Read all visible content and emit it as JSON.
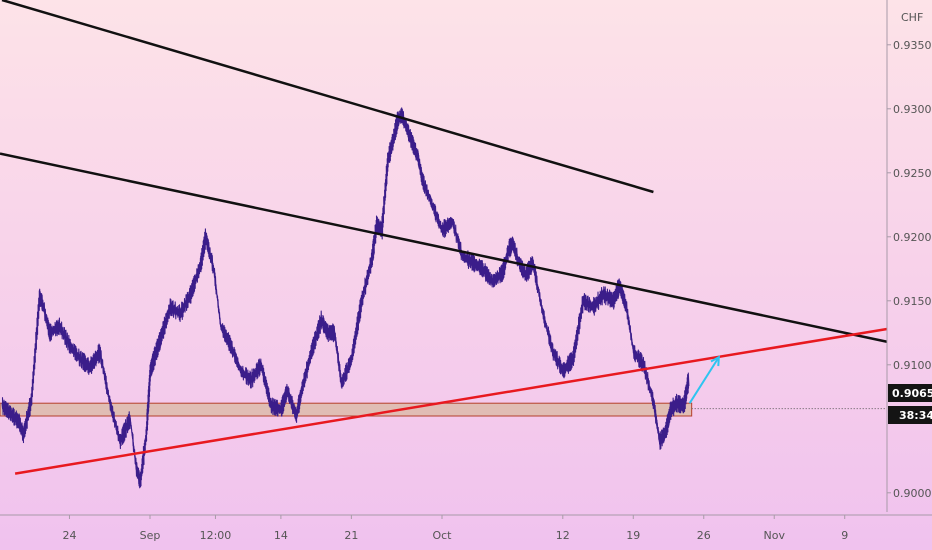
{
  "chart_data": {
    "type": "line",
    "title": "",
    "currency_label": "CHF",
    "y_axis": {
      "ylim": [
        0.8985,
        0.9385
      ],
      "ticks": [
        "0.93500",
        "0.93000",
        "0.92500",
        "0.92000",
        "0.91500",
        "0.91000",
        "0.90000"
      ],
      "tick_values": [
        0.935,
        0.93,
        0.925,
        0.92,
        0.915,
        0.91,
        0.9
      ]
    },
    "x_axis": {
      "tick_labels": [
        "24",
        "Sep",
        "12:00",
        "14",
        "21",
        "Oct",
        "12",
        "19",
        "26",
        "Nov",
        "9"
      ],
      "tick_days": [
        24,
        32,
        38.5,
        45,
        52,
        61,
        73,
        80,
        87,
        94,
        101
      ],
      "xlim": [
        17.1,
        105.2
      ]
    },
    "current_price": {
      "label": "0.90658",
      "value": 0.90658,
      "countdown": "38:34"
    },
    "price_series": {
      "name": "",
      "color": "#3b1d8a",
      "x": [
        17.3,
        18.0,
        19.0,
        19.4,
        20.2,
        21.0,
        21.3,
        22.0,
        23.0,
        24.0,
        25.0,
        26.0,
        27.0,
        28.0,
        29.0,
        30.0,
        30.6,
        31.0,
        31.6,
        32.0,
        32.5,
        33.0,
        34.0,
        35.0,
        36.0,
        37.0,
        37.5,
        38.3,
        39.0,
        40.0,
        41.0,
        42.0,
        43.0,
        44.0,
        45.0,
        45.6,
        46.5,
        47.1,
        48.0,
        49.0,
        49.6,
        50.3,
        51.0,
        52.0,
        53.0,
        54.0,
        54.5,
        55.0,
        55.6,
        56.1,
        56.6,
        57.0,
        57.8,
        58.6,
        59.0,
        60.0,
        61.0,
        62.0,
        63.0,
        64.0,
        65.0,
        66.0,
        67.0,
        67.6,
        68.0,
        68.6,
        69.3,
        70.0,
        71.0,
        72.0,
        73.0,
        74.0,
        75.0,
        76.0,
        77.0,
        78.0,
        78.6,
        79.3,
        80.0,
        81.0,
        82.0,
        82.6,
        83.2,
        83.7,
        84.3,
        85.0,
        85.5
      ],
      "y": [
        0.9068,
        0.9063,
        0.9055,
        0.9045,
        0.9073,
        0.9153,
        0.9148,
        0.9125,
        0.913,
        0.9115,
        0.9105,
        0.9098,
        0.911,
        0.907,
        0.904,
        0.9058,
        0.902,
        0.9008,
        0.9045,
        0.9095,
        0.9108,
        0.912,
        0.9145,
        0.914,
        0.9155,
        0.9178,
        0.92,
        0.9175,
        0.913,
        0.9115,
        0.9095,
        0.9088,
        0.91,
        0.9068,
        0.9065,
        0.908,
        0.906,
        0.9082,
        0.911,
        0.9135,
        0.9125,
        0.9125,
        0.9085,
        0.9105,
        0.915,
        0.9182,
        0.921,
        0.9205,
        0.926,
        0.9275,
        0.9292,
        0.9295,
        0.9278,
        0.9262,
        0.9245,
        0.9225,
        0.9205,
        0.9212,
        0.9185,
        0.918,
        0.9175,
        0.9165,
        0.9172,
        0.919,
        0.9195,
        0.918,
        0.917,
        0.918,
        0.914,
        0.911,
        0.9095,
        0.9105,
        0.915,
        0.9145,
        0.9155,
        0.915,
        0.9162,
        0.9145,
        0.911,
        0.91,
        0.907,
        0.904,
        0.9048,
        0.9065,
        0.907,
        0.9068,
        0.909
      ]
    },
    "trendlines": [
      {
        "name": "upper resistance",
        "color": "#111111",
        "x": [
          17.3,
          82.0
        ],
        "y": [
          0.9385,
          0.9235
        ]
      },
      {
        "name": "lower resistance",
        "color": "#111111",
        "x": [
          17.1,
          105.2
        ],
        "y": [
          0.9265,
          0.9118
        ]
      },
      {
        "name": "rising support",
        "color": "#e8191f",
        "x": [
          18.6,
          105.2
        ],
        "y": [
          0.9015,
          0.9128
        ]
      }
    ],
    "support_zone": {
      "x": [
        17.1,
        85.8
      ],
      "y": [
        0.906,
        0.907
      ]
    },
    "projection_arrow": {
      "color": "#2ec4f0",
      "x": [
        85.6,
        88.5
      ],
      "y": [
        0.907,
        0.9106
      ]
    }
  }
}
